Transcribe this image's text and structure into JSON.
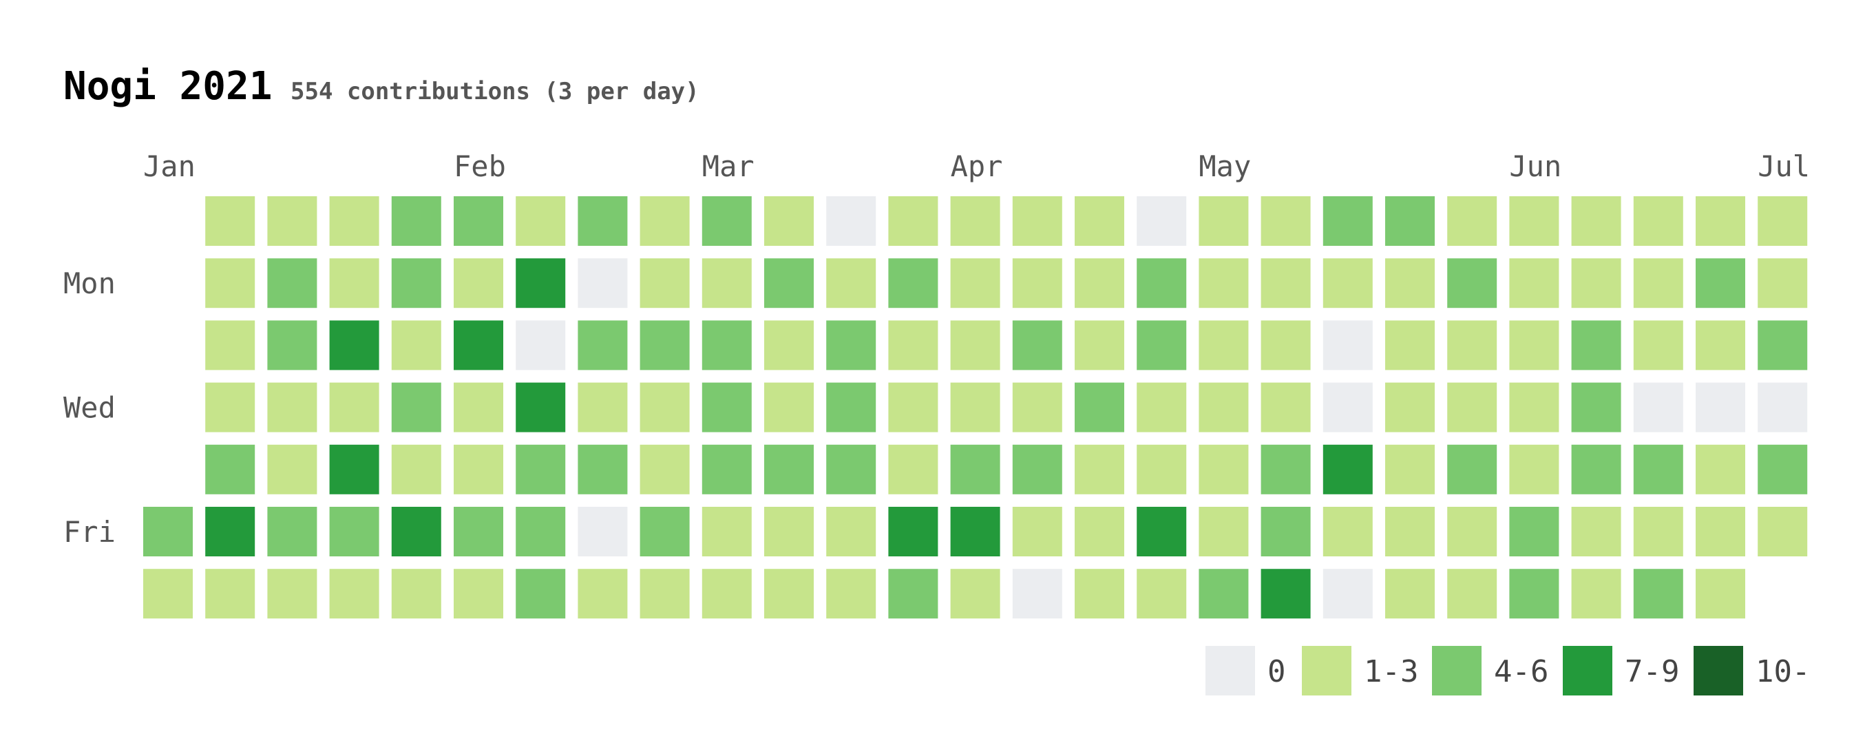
{
  "chart_data": {
    "type": "heatmap",
    "title": "Nogi 2021",
    "subtitle": "554 contributions (3 per day)",
    "months": [
      {
        "label": "Jan",
        "week": 0
      },
      {
        "label": "Feb",
        "week": 5
      },
      {
        "label": "Mar",
        "week": 9
      },
      {
        "label": "Apr",
        "week": 13
      },
      {
        "label": "May",
        "week": 17
      },
      {
        "label": "Jun",
        "week": 22
      },
      {
        "label": "Jul",
        "week": 26
      }
    ],
    "weekdays": [
      {
        "label": "Mon",
        "row": 1
      },
      {
        "label": "Wed",
        "row": 3
      },
      {
        "label": "Fri",
        "row": 5
      }
    ],
    "levels": [
      {
        "label": "0",
        "color": "#ebedf0"
      },
      {
        "label": "1-3",
        "color": "#c6e48b"
      },
      {
        "label": "4-6",
        "color": "#7bc96f"
      },
      {
        "label": "7-9",
        "color": "#239a3b"
      },
      {
        "label": "10-",
        "color": "#196127"
      }
    ],
    "grid_levels": [
      [
        null,
        null,
        null,
        null,
        null,
        2,
        1
      ],
      [
        1,
        1,
        1,
        1,
        2,
        3,
        1
      ],
      [
        1,
        2,
        2,
        1,
        1,
        2,
        1
      ],
      [
        1,
        1,
        3,
        1,
        3,
        2,
        1
      ],
      [
        2,
        2,
        1,
        2,
        1,
        3,
        1
      ],
      [
        2,
        1,
        3,
        1,
        1,
        2,
        1
      ],
      [
        1,
        3,
        0,
        3,
        2,
        2,
        2
      ],
      [
        2,
        0,
        2,
        1,
        2,
        0,
        1
      ],
      [
        1,
        1,
        2,
        1,
        1,
        2,
        1
      ],
      [
        2,
        1,
        2,
        2,
        2,
        1,
        1
      ],
      [
        1,
        2,
        1,
        1,
        2,
        1,
        1
      ],
      [
        0,
        1,
        2,
        2,
        2,
        1,
        1
      ],
      [
        1,
        2,
        1,
        1,
        1,
        3,
        2
      ],
      [
        1,
        1,
        1,
        1,
        2,
        3,
        1
      ],
      [
        1,
        1,
        2,
        1,
        2,
        1,
        0
      ],
      [
        1,
        1,
        1,
        2,
        1,
        1,
        1
      ],
      [
        0,
        2,
        2,
        1,
        1,
        3,
        1
      ],
      [
        1,
        1,
        1,
        1,
        1,
        1,
        2
      ],
      [
        1,
        1,
        1,
        1,
        2,
        2,
        3
      ],
      [
        2,
        1,
        0,
        0,
        3,
        1,
        0
      ],
      [
        2,
        1,
        1,
        1,
        1,
        1,
        1
      ],
      [
        1,
        2,
        1,
        1,
        2,
        1,
        1
      ],
      [
        1,
        1,
        1,
        1,
        1,
        2,
        2
      ],
      [
        1,
        1,
        2,
        2,
        2,
        1,
        1
      ],
      [
        1,
        1,
        1,
        0,
        2,
        1,
        2
      ],
      [
        1,
        2,
        1,
        0,
        1,
        1,
        1
      ],
      [
        1,
        1,
        2,
        0,
        2,
        1,
        null
      ]
    ]
  }
}
